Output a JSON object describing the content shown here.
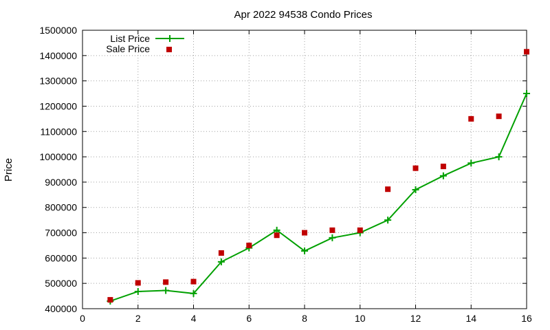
{
  "chart_data": {
    "type": "line",
    "title": "Apr 2022 94538 Condo Prices",
    "xlabel": "",
    "ylabel": "Price",
    "xlim": [
      0,
      16
    ],
    "ylim": [
      400000,
      1500000
    ],
    "x_ticks": [
      "0",
      "2",
      "4",
      "6",
      "8",
      "10",
      "12",
      "14",
      "16"
    ],
    "y_ticks": [
      "400000",
      "500000",
      "600000",
      "700000",
      "800000",
      "900000",
      "1000000",
      "1100000",
      "1200000",
      "1300000",
      "1400000",
      "1500000"
    ],
    "grid": true,
    "legend_position": "top-left",
    "series": [
      {
        "name": "List Price",
        "style": "line+cross",
        "color": "#00a000",
        "x": [
          1,
          2,
          3,
          4,
          5,
          6,
          7,
          8,
          9,
          10,
          11,
          12,
          13,
          14,
          15,
          16
        ],
        "y": [
          430000,
          468000,
          472000,
          460000,
          585000,
          640000,
          710000,
          628000,
          680000,
          700000,
          750000,
          870000,
          925000,
          975000,
          1000000,
          1250000
        ]
      },
      {
        "name": "Sale Price",
        "style": "points",
        "color": "#c00000",
        "x": [
          1,
          2,
          3,
          4,
          5,
          6,
          7,
          8,
          9,
          10,
          11,
          12,
          13,
          14,
          15,
          16
        ],
        "y": [
          435000,
          502000,
          505000,
          507000,
          620000,
          650000,
          690000,
          700000,
          710000,
          710000,
          872000,
          955000,
          962000,
          1150000,
          1160000,
          1415000
        ]
      }
    ]
  }
}
